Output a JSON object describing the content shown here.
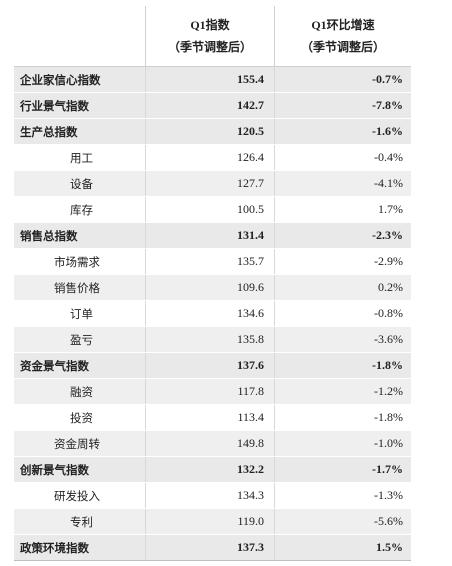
{
  "header": {
    "col1_line1": "Q1指数",
    "col1_line2": "（季节调整后）",
    "col2_line1": "Q1环比增速",
    "col2_line2": "（季节调整后）"
  },
  "rows": [
    {
      "name": "企业家信心指数",
      "index": "155.4",
      "growth": "-0.7%"
    },
    {
      "name": "行业景气指数",
      "index": "142.7",
      "growth": "-7.8%"
    },
    {
      "name": "生产总指数",
      "index": "120.5",
      "growth": "-1.6%"
    },
    {
      "name": "用工",
      "index": "126.4",
      "growth": "-0.4%"
    },
    {
      "name": "设备",
      "index": "127.7",
      "growth": "-4.1%"
    },
    {
      "name": "库存",
      "index": "100.5",
      "growth": "1.7%"
    },
    {
      "name": "销售总指数",
      "index": "131.4",
      "growth": "-2.3%"
    },
    {
      "name": "市场需求",
      "index": "135.7",
      "growth": "-2.9%"
    },
    {
      "name": "销售价格",
      "index": "109.6",
      "growth": "0.2%"
    },
    {
      "name": "订单",
      "index": "134.6",
      "growth": "-0.8%"
    },
    {
      "name": "盈亏",
      "index": "135.8",
      "growth": "-3.6%"
    },
    {
      "name": "资金景气指数",
      "index": "137.6",
      "growth": "-1.8%"
    },
    {
      "name": "融资",
      "index": "117.8",
      "growth": "-1.2%"
    },
    {
      "name": "投资",
      "index": "113.4",
      "growth": "-1.8%"
    },
    {
      "name": "资金周转",
      "index": "149.8",
      "growth": "-1.0%"
    },
    {
      "name": "创新景气指数",
      "index": "132.2",
      "growth": "-1.7%"
    },
    {
      "name": "研发投入",
      "index": "134.3",
      "growth": "-1.3%"
    },
    {
      "name": "专利",
      "index": "119.0",
      "growth": "-5.6%"
    },
    {
      "name": "政策环境指数",
      "index": "137.3",
      "growth": "1.5%"
    }
  ]
}
